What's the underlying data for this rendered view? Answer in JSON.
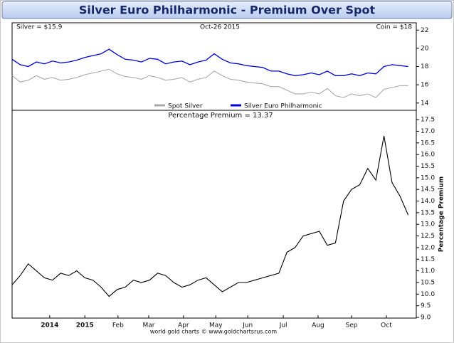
{
  "header": {
    "title": "Silver Euro Philharmonic - Premium Over Spot"
  },
  "footer": "world gold charts © www.goldchartsrus.com",
  "chart_data": [
    {
      "type": "line",
      "annotations": [
        "Silver = $15.9",
        "Oct-26 2015",
        "Coin = $18"
      ],
      "x": [
        0,
        2,
        4,
        6,
        8,
        10,
        12,
        14,
        16,
        18,
        20,
        22,
        24,
        26,
        28,
        30,
        32,
        34,
        36,
        38,
        40,
        42,
        44,
        46,
        48,
        50,
        52,
        54,
        56,
        58,
        60,
        62,
        64,
        66,
        68,
        70,
        72,
        74,
        76,
        78,
        80,
        82,
        84,
        86,
        88,
        90,
        92,
        94,
        96,
        98
      ],
      "xlim": [
        0,
        100
      ],
      "ylim": [
        13.2,
        22.8
      ],
      "yticks": [
        14,
        16,
        18,
        20,
        22
      ],
      "series": [
        {
          "name": "Spot Silver",
          "color": "#a9a9a9",
          "values": [
            17.0,
            16.3,
            16.5,
            17.0,
            16.6,
            16.8,
            16.5,
            16.6,
            16.8,
            17.1,
            17.3,
            17.5,
            17.7,
            17.2,
            16.9,
            16.8,
            16.6,
            17.0,
            16.8,
            16.5,
            16.6,
            16.8,
            16.3,
            16.6,
            16.8,
            17.5,
            17.0,
            16.6,
            16.5,
            16.3,
            16.2,
            16.1,
            15.8,
            15.8,
            15.4,
            15.0,
            15.0,
            15.2,
            15.0,
            15.6,
            14.8,
            14.6,
            15.0,
            14.8,
            15.0,
            14.6,
            15.5,
            15.7,
            15.9,
            15.9
          ]
        },
        {
          "name": "Silver Euro Philharmonic",
          "color": "#0000dd",
          "values": [
            18.8,
            18.2,
            18.0,
            18.5,
            18.3,
            18.6,
            18.4,
            18.5,
            18.7,
            19.0,
            19.2,
            19.4,
            19.9,
            19.3,
            18.8,
            18.7,
            18.5,
            18.9,
            18.8,
            18.3,
            18.5,
            18.6,
            18.2,
            18.5,
            18.7,
            19.4,
            18.8,
            18.4,
            18.3,
            18.1,
            18.0,
            17.9,
            17.5,
            17.5,
            17.2,
            17.0,
            17.1,
            17.3,
            17.1,
            17.5,
            17.0,
            17.0,
            17.2,
            17.0,
            17.3,
            17.2,
            18.0,
            18.2,
            18.1,
            18.0
          ]
        }
      ]
    },
    {
      "type": "line",
      "title": "Percentage Premium = 13.37",
      "y_label": "Percentage Premium",
      "x": [
        0,
        2,
        4,
        6,
        8,
        10,
        12,
        14,
        16,
        18,
        20,
        22,
        24,
        26,
        28,
        30,
        32,
        34,
        36,
        38,
        40,
        42,
        44,
        46,
        48,
        50,
        52,
        54,
        56,
        58,
        60,
        62,
        64,
        66,
        68,
        70,
        72,
        74,
        76,
        78,
        80,
        82,
        84,
        86,
        88,
        90,
        92,
        94,
        96,
        98
      ],
      "xlim": [
        0,
        100
      ],
      "xticks": [
        {
          "value": 9.3,
          "label": "2014"
        },
        {
          "value": 18.0,
          "label": "2015"
        },
        {
          "value": 26.2,
          "label": "Feb"
        },
        {
          "value": 33.8,
          "label": "Mar"
        },
        {
          "value": 42.4,
          "label": "Apr"
        },
        {
          "value": 50.4,
          "label": "May"
        },
        {
          "value": 58.3,
          "label": "Jun"
        },
        {
          "value": 67.1,
          "label": "Jul"
        },
        {
          "value": 75.7,
          "label": "Aug"
        },
        {
          "value": 84.0,
          "label": "Sep"
        },
        {
          "value": 92.6,
          "label": "Oct"
        }
      ],
      "ylim": [
        8.97,
        17.9
      ],
      "yticks": [
        {
          "value": 9,
          "label": "9.0"
        },
        9.5,
        {
          "value": 10,
          "label": "10.0"
        },
        10.5,
        {
          "value": 11,
          "label": "11.0"
        },
        11.5,
        {
          "value": 12,
          "label": "12.0"
        },
        12.5,
        {
          "value": 13,
          "label": "13.0"
        },
        13.5,
        {
          "value": 14,
          "label": "14.0"
        },
        14.5,
        {
          "value": 15,
          "label": "15.0"
        },
        15.5,
        {
          "value": 16,
          "label": "16.0"
        },
        16.5,
        {
          "value": 17,
          "label": "17.0"
        },
        17.5
      ],
      "series": [
        {
          "name": "Percentage Premium",
          "color": "#000000",
          "values": [
            10.4,
            10.8,
            11.3,
            11.0,
            10.7,
            10.6,
            10.9,
            10.8,
            11.0,
            10.7,
            10.6,
            10.3,
            9.9,
            10.2,
            10.3,
            10.6,
            10.5,
            10.6,
            10.9,
            10.8,
            10.5,
            10.3,
            10.4,
            10.6,
            10.7,
            10.4,
            10.1,
            10.3,
            10.5,
            10.5,
            10.6,
            10.7,
            10.8,
            10.9,
            11.8,
            12.0,
            12.5,
            12.6,
            12.7,
            12.1,
            12.2,
            14.0,
            14.5,
            14.7,
            15.4,
            14.9,
            16.8,
            14.8,
            14.2,
            13.4
          ]
        }
      ]
    }
  ]
}
